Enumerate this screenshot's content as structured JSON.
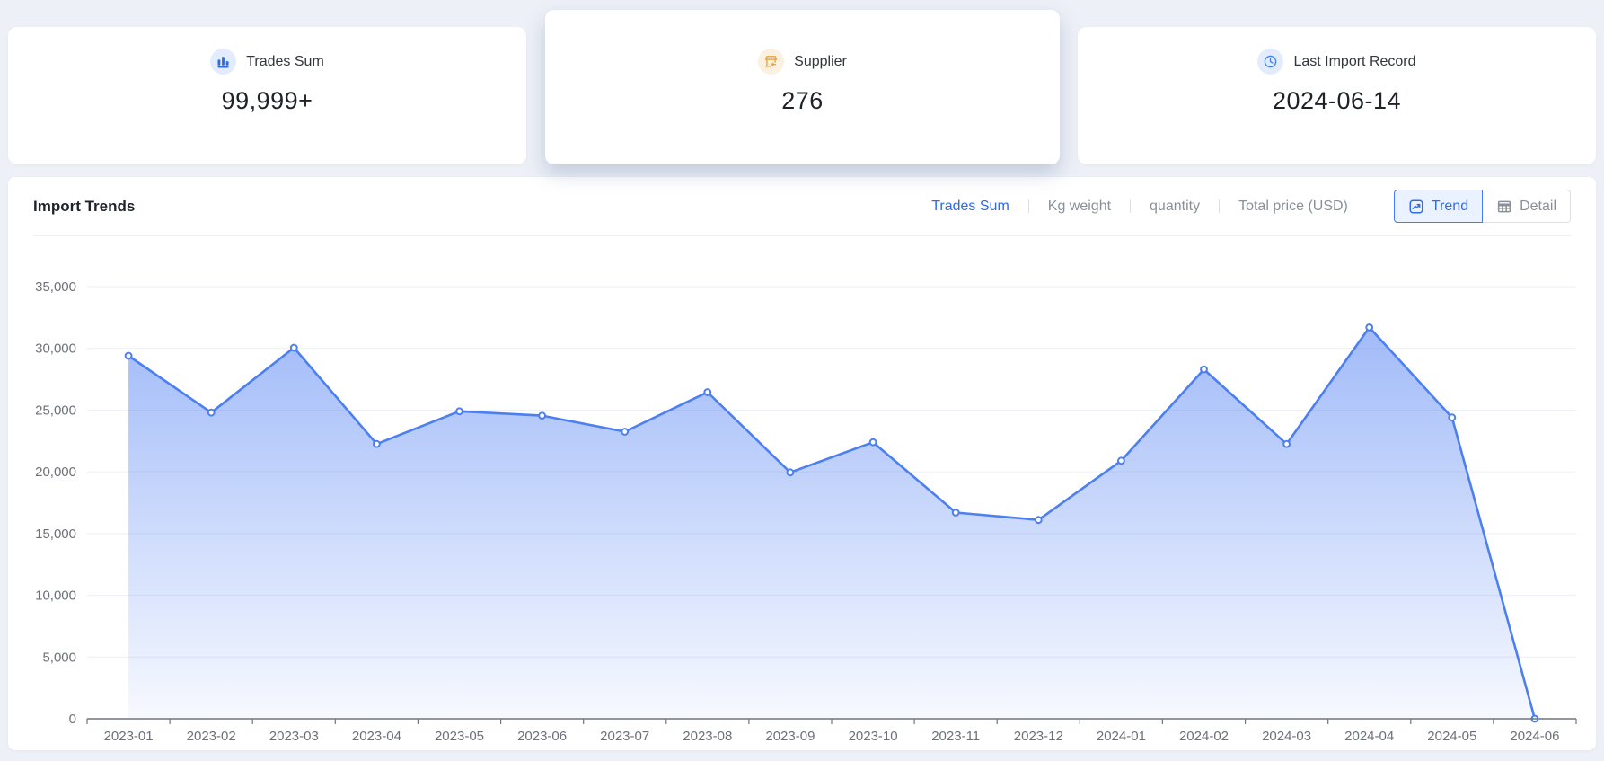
{
  "stat_cards": [
    {
      "label": "Trades Sum",
      "value": "99,999+",
      "icon": "bar-chart-icon"
    },
    {
      "label": "Supplier",
      "value": "276",
      "icon": "storefront-icon"
    },
    {
      "label": "Last Import Record",
      "value": "2024-06-14",
      "icon": "clock-icon"
    }
  ],
  "trends_panel": {
    "title": "Import Trends",
    "metric_tabs": [
      {
        "label": "Trades Sum",
        "active": true
      },
      {
        "label": "Kg weight",
        "active": false
      },
      {
        "label": "quantity",
        "active": false
      },
      {
        "label": "Total price (USD)",
        "active": false
      }
    ],
    "view_toggle": [
      {
        "label": "Trend",
        "icon": "trend-chart-icon",
        "active": true
      },
      {
        "label": "Detail",
        "icon": "table-icon",
        "active": false
      }
    ]
  },
  "chart_data": {
    "type": "area",
    "title": "Import Trends",
    "x": [
      "2023-01",
      "2023-02",
      "2023-03",
      "2023-04",
      "2023-05",
      "2023-06",
      "2023-07",
      "2023-08",
      "2023-09",
      "2023-10",
      "2023-11",
      "2023-12",
      "2024-01",
      "2024-02",
      "2024-03",
      "2024-04",
      "2024-05",
      "2024-06"
    ],
    "series": [
      {
        "name": "Trades Sum",
        "values": [
          29400,
          24800,
          30050,
          22250,
          24900,
          24550,
          23250,
          26450,
          19950,
          22400,
          16700,
          16100,
          20900,
          28300,
          22250,
          31700,
          24400,
          0
        ]
      }
    ],
    "xlabel": "",
    "ylabel": "",
    "ylim": [
      0,
      35000
    ],
    "ytick_interval": 5000,
    "grid": true,
    "legend_position": "none",
    "colors": {
      "line": "#4C7FF0",
      "area_top": "#5483F3",
      "gridline": "#EBEFF5",
      "axis": "#71757E",
      "tick_text": "#6E7079"
    }
  }
}
